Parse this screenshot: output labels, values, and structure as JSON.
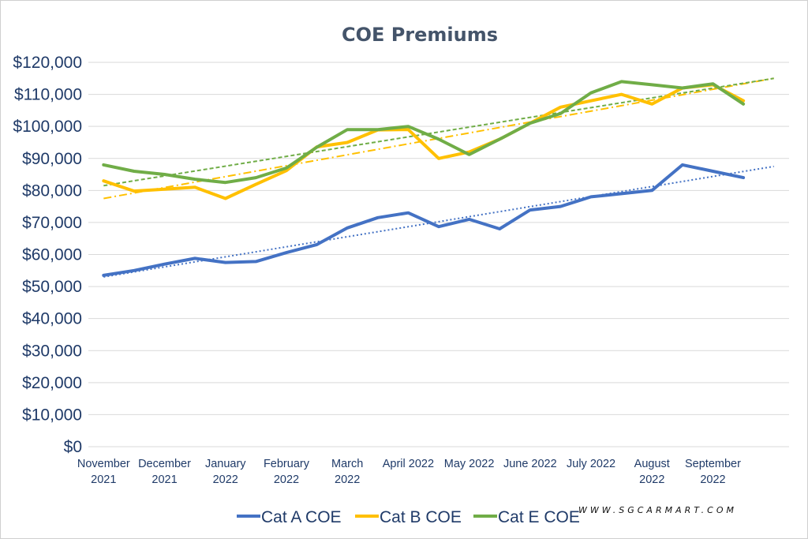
{
  "chart_data": {
    "type": "line",
    "title": "COE Premiums",
    "xlabel": "",
    "ylabel": "",
    "ylim": [
      0,
      120000
    ],
    "y_ticks": [
      "$0",
      "$10,000",
      "$20,000",
      "$30,000",
      "$40,000",
      "$50,000",
      "$60,000",
      "$70,000",
      "$80,000",
      "$90,000",
      "$100,000",
      "$110,000",
      "$120,000"
    ],
    "y_tick_values": [
      0,
      10000,
      20000,
      30000,
      40000,
      50000,
      60000,
      70000,
      80000,
      90000,
      100000,
      110000,
      120000
    ],
    "grid": true,
    "x_tick_labels": [
      [
        "November",
        "2021"
      ],
      [
        "December",
        "2021"
      ],
      [
        "January",
        "2022"
      ],
      [
        "February",
        "2022"
      ],
      [
        "March",
        "2022"
      ],
      [
        "April 2022"
      ],
      [
        "May 2022"
      ],
      [
        "June 2022"
      ],
      [
        "July 2022"
      ],
      [
        "August",
        "2022"
      ],
      [
        "September",
        "2022"
      ]
    ],
    "x_tick_positions": [
      0.5,
      2.5,
      4.5,
      6.5,
      8.5,
      10.5,
      12.5,
      14.5,
      16.5,
      18.5,
      20.5
    ],
    "x_range": [
      0,
      23
    ],
    "x": [
      0.5,
      1.5,
      2.5,
      3.5,
      4.5,
      5.5,
      6.5,
      7.5,
      8.5,
      9.5,
      10.5,
      11.5,
      12.5,
      13.5,
      14.5,
      15.5,
      16.5,
      17.5,
      18.5,
      19.5,
      20.5,
      21.5
    ],
    "series": [
      {
        "name": "Cat A COE",
        "color": "#4472c4",
        "values": [
          53500,
          55000,
          57000,
          58800,
          57500,
          57800,
          60600,
          63100,
          68300,
          71500,
          73000,
          68700,
          71000,
          68000,
          73900,
          75000,
          78000,
          79000,
          80000,
          88000,
          86000,
          84000
        ],
        "trend": {
          "style": "dotted",
          "start": 53000,
          "end": 87500,
          "x_end": 22.5
        }
      },
      {
        "name": "Cat B COE",
        "color": "#ffc000",
        "values": [
          83000,
          79800,
          80400,
          81000,
          77500,
          81900,
          86200,
          93600,
          95000,
          98900,
          99000,
          90000,
          92000,
          96000,
          101000,
          106000,
          108000,
          110000,
          107000,
          112000,
          113000,
          108000
        ],
        "trend": {
          "style": "dashdot",
          "start": 77500,
          "end": 115000,
          "x_end": 22.5
        }
      },
      {
        "name": "Cat E COE",
        "color": "#70ad47",
        "values": [
          88000,
          86000,
          85000,
          83500,
          82500,
          84000,
          87000,
          93500,
          99000,
          99000,
          100000,
          96000,
          91200,
          96000,
          101000,
          104000,
          110500,
          114000,
          113000,
          112000,
          113300,
          107000
        ],
        "trend": {
          "style": "dashed",
          "start": 81500,
          "end": 115000,
          "x_end": 22.5
        }
      }
    ],
    "legend_position": "bottom"
  },
  "watermark": "WWW.SGCARMART.COM"
}
